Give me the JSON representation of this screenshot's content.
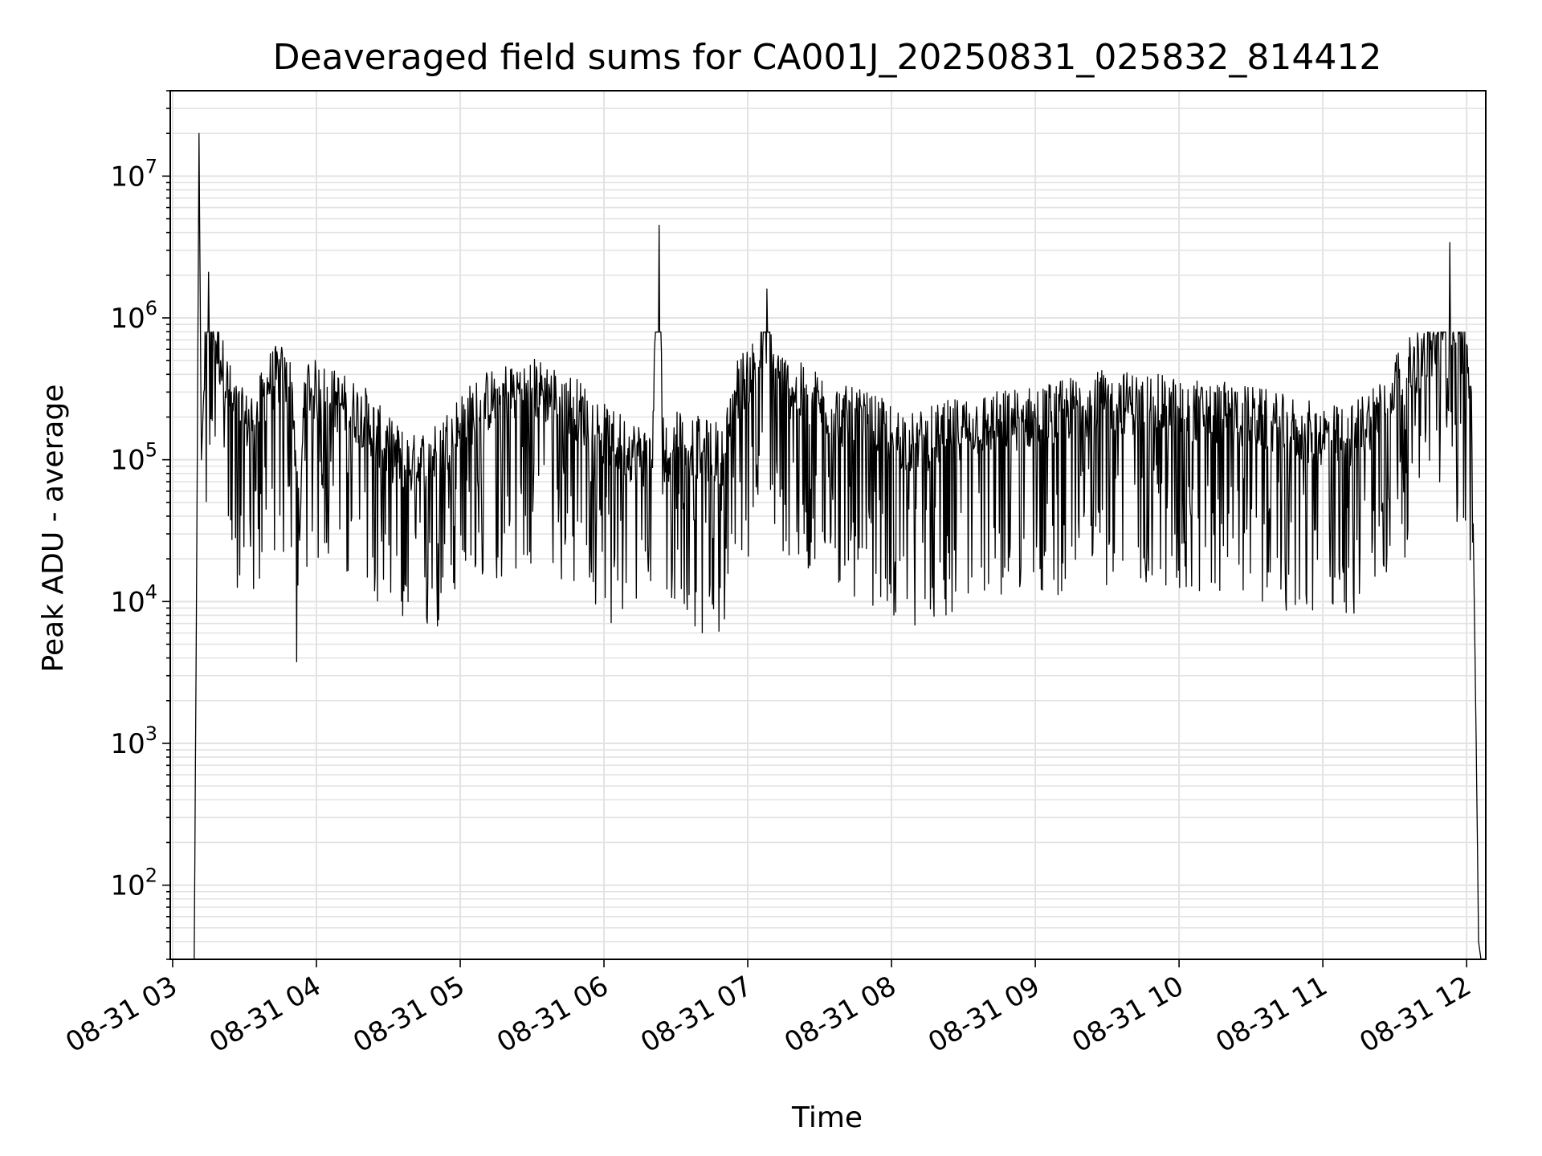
{
  "chart_data": {
    "type": "line",
    "title": "Deaveraged field sums for CA001J_20250831_025832_814412",
    "xlabel": "Time",
    "ylabel": "Peak ADU - average",
    "x_axis_type": "time",
    "x_range": [
      "2025-08-31 02:59",
      "2025-08-31 12:08"
    ],
    "x_ticks": [
      "08-31 03",
      "08-31 04",
      "08-31 05",
      "08-31 06",
      "08-31 07",
      "08-31 08",
      "08-31 09",
      "08-31 10",
      "08-31 11",
      "08-31 12"
    ],
    "y_scale": "log",
    "ylim": [
      30,
      40000000
    ],
    "y_ticks": [
      {
        "base": "10",
        "exp": "2",
        "value": 100
      },
      {
        "base": "10",
        "exp": "3",
        "value": 1000
      },
      {
        "base": "10",
        "exp": "4",
        "value": 10000
      },
      {
        "base": "10",
        "exp": "5",
        "value": 100000
      },
      {
        "base": "10",
        "exp": "6",
        "value": 1000000
      },
      {
        "base": "10",
        "exp": "7",
        "value": 10000000
      }
    ],
    "grid": true,
    "line_color": "#000000",
    "grid_color": "#e3e3e3",
    "series": [
      {
        "x": [
          "03:09",
          "03:10",
          "03:11",
          "03:12",
          "03:13",
          "03:15",
          "03:17",
          "03:20",
          "03:25",
          "03:30",
          "03:35",
          "03:40",
          "03:45",
          "03:50",
          "03:53",
          "03:55",
          "04:00",
          "04:10",
          "04:20",
          "04:30",
          "04:40",
          "04:50",
          "05:00",
          "05:10",
          "05:20",
          "05:30",
          "05:40",
          "05:50",
          "06:00",
          "06:10",
          "06:20",
          "06:23",
          "06:25",
          "06:30",
          "06:40",
          "06:50",
          "06:55",
          "07:00",
          "07:05",
          "07:08",
          "07:10",
          "07:15",
          "07:20",
          "07:30",
          "07:40",
          "07:50",
          "08:00",
          "08:10",
          "08:20",
          "08:30",
          "08:40",
          "08:50",
          "09:00",
          "09:10",
          "09:20",
          "09:30",
          "09:40",
          "09:50",
          "10:00",
          "10:10",
          "10:20",
          "10:30",
          "10:40",
          "10:50",
          "11:00",
          "11:10",
          "11:20",
          "11:30",
          "11:40",
          "11:45",
          "11:50",
          "11:53",
          "11:55",
          "12:00",
          "12:02",
          "12:04",
          "12:05",
          "12:06"
        ],
        "y": [
          30,
          15000,
          20000000,
          100000,
          300000,
          2100000,
          800000,
          500000,
          250000,
          180000,
          200000,
          350000,
          400000,
          300000,
          27000,
          350000,
          300000,
          250000,
          200000,
          120000,
          90000,
          110000,
          180000,
          250000,
          300000,
          320000,
          280000,
          220000,
          150000,
          120000,
          100000,
          4500000,
          100000,
          150000,
          120000,
          110000,
          300000,
          400000,
          500000,
          1600000,
          450000,
          350000,
          300000,
          250000,
          200000,
          180000,
          150000,
          130000,
          150000,
          170000,
          180000,
          190000,
          200000,
          220000,
          240000,
          260000,
          250000,
          240000,
          230000,
          220000,
          210000,
          200000,
          180000,
          160000,
          150000,
          140000,
          200000,
          350000,
          500000,
          600000,
          700000,
          3400000,
          700000,
          650000,
          300000,
          1000,
          40,
          30
        ]
      }
    ]
  }
}
